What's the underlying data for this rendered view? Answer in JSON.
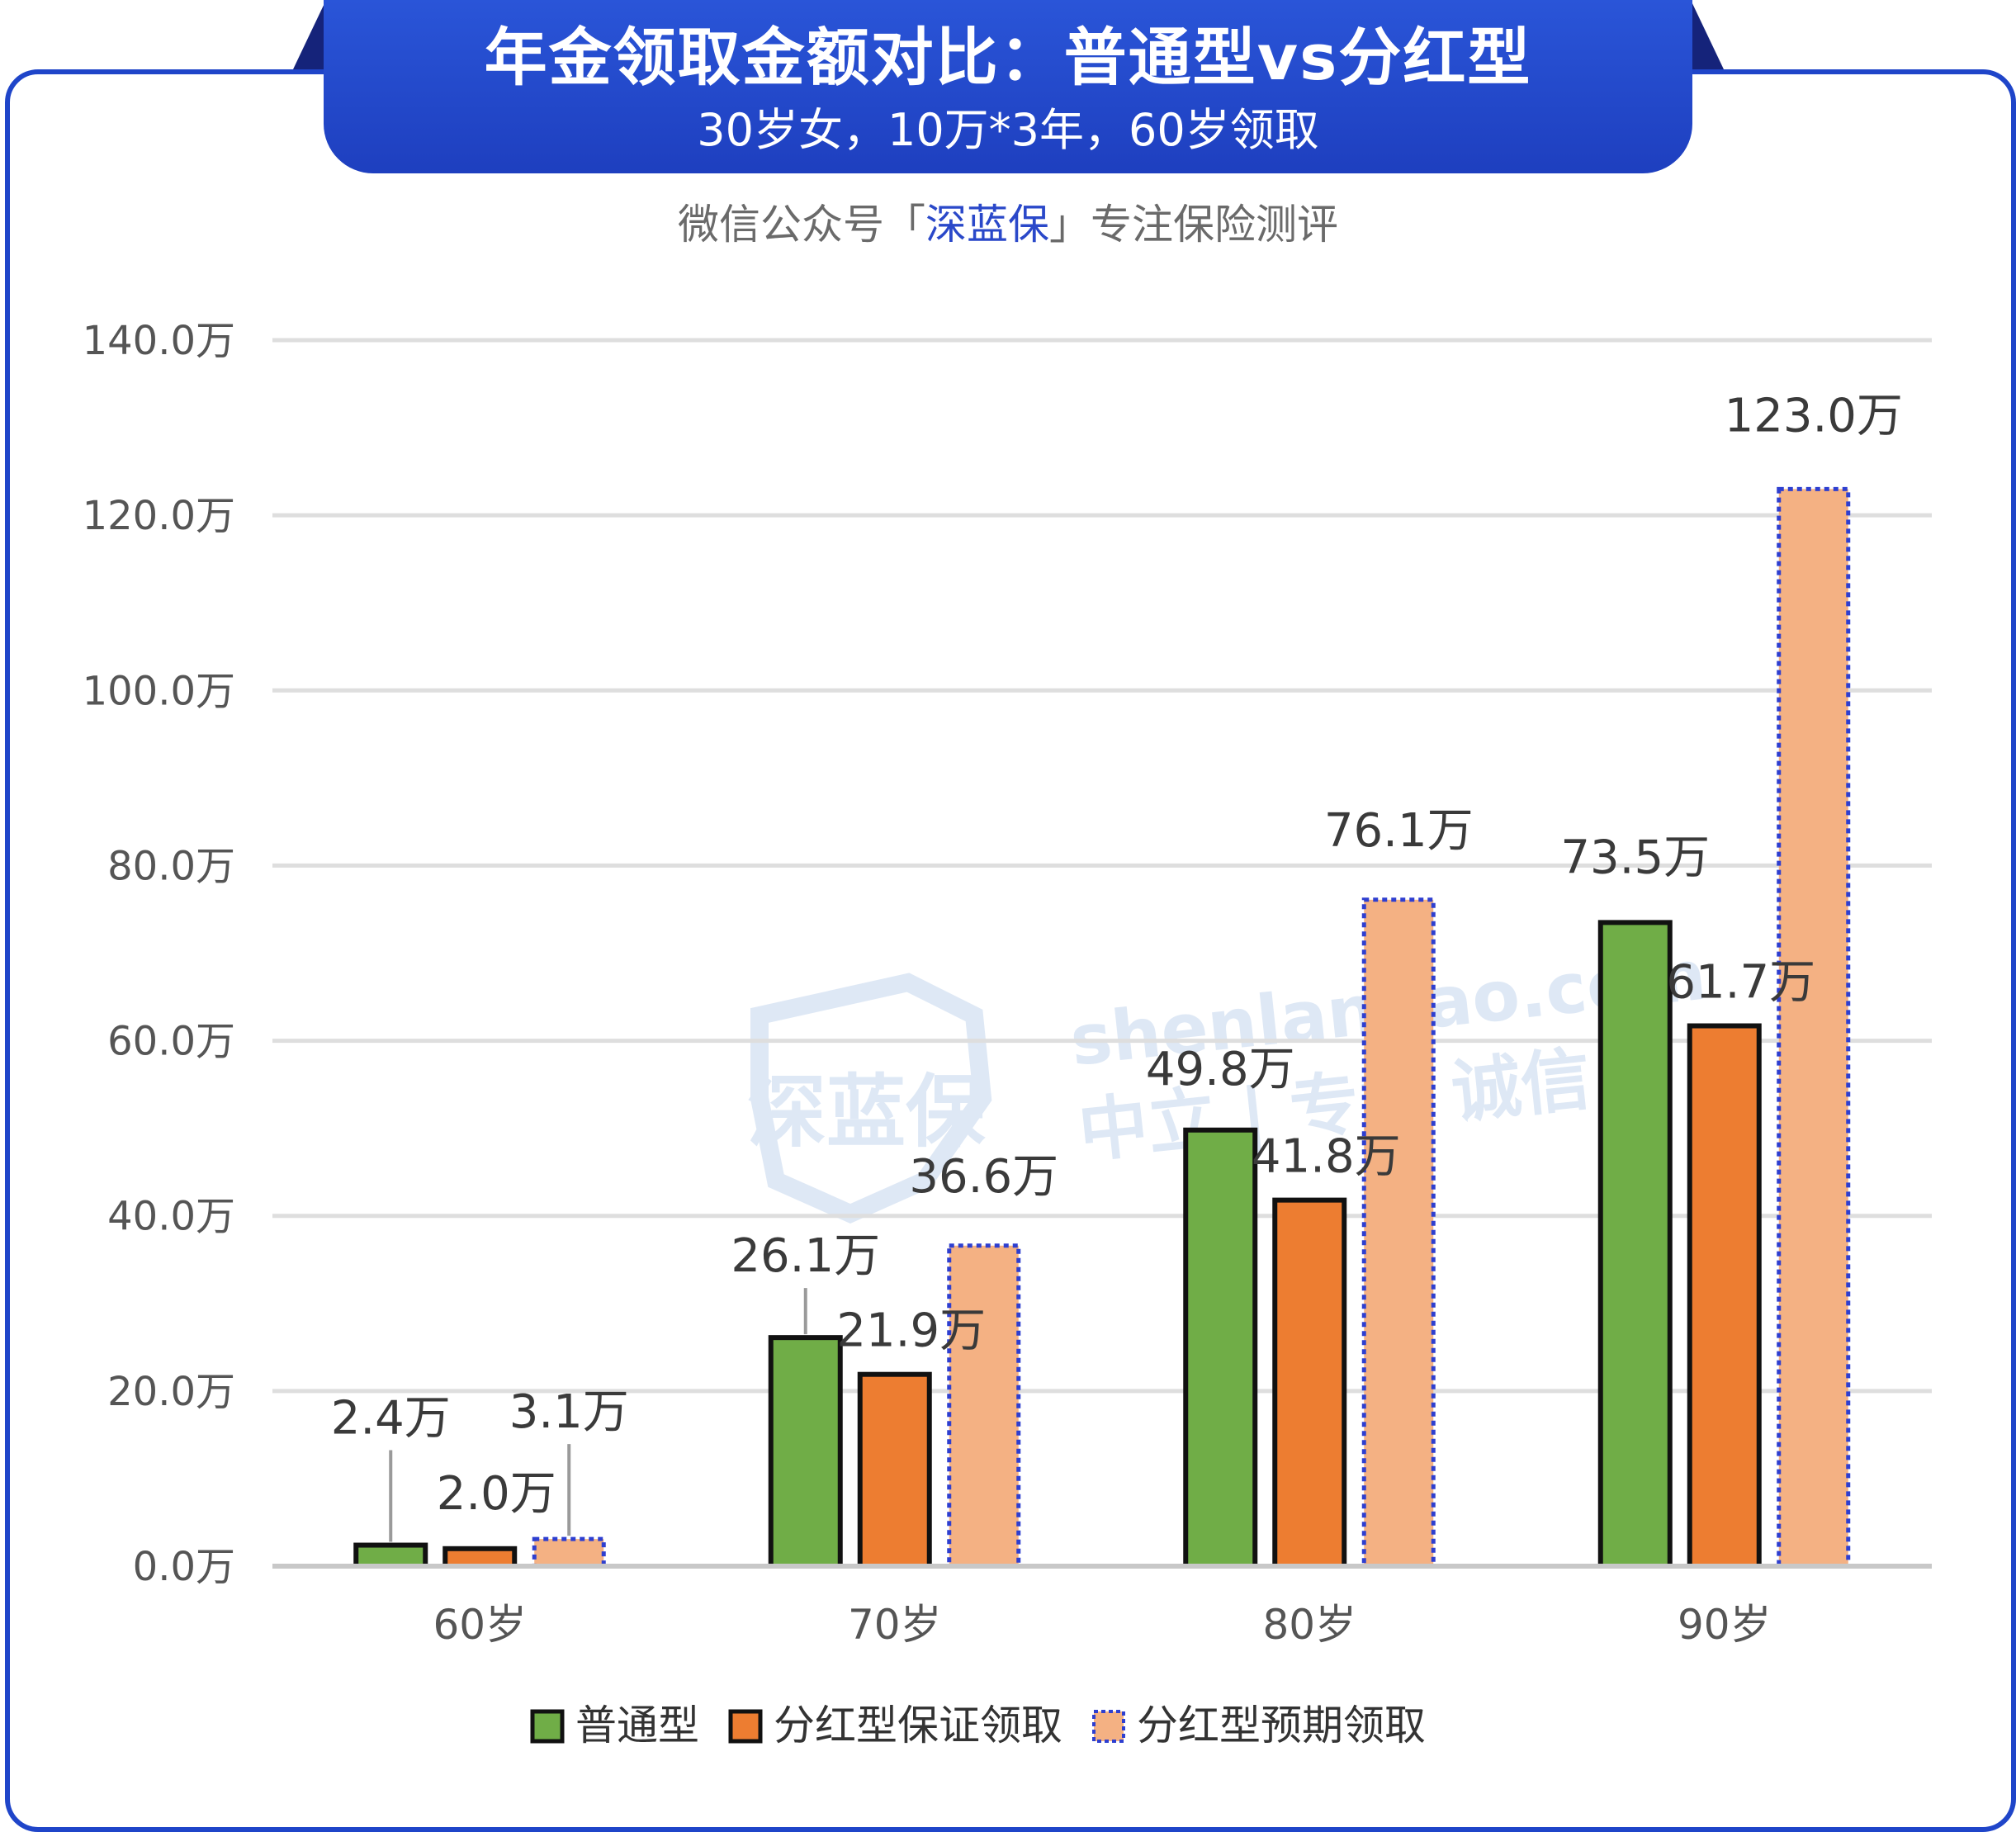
{
  "header": {
    "title": "年金领取金额对比：普通型vs分红型",
    "subtitle": "30岁女，10万*3年，60岁领取"
  },
  "source": {
    "prefix": "微信公众号「",
    "brand": "深蓝保",
    "suffix": "」专注保险测评"
  },
  "watermark": {
    "logo_text": "深蓝保",
    "url": "shenlanbao.com",
    "slogan": "中立 | 专业 诚信"
  },
  "colors": {
    "frame": "#1f45c9",
    "series_green": "#70ad47",
    "series_orange": "#ed7d31",
    "series_peach": "#f4b183",
    "dotted_border": "#2e3fd0"
  },
  "chart_data": {
    "type": "bar",
    "categories": [
      "60岁",
      "70岁",
      "80岁",
      "90岁"
    ],
    "series": [
      {
        "name": "普通型",
        "values": [
          2.4,
          26.1,
          49.8,
          73.5
        ],
        "labels": [
          "2.4万",
          "26.1万",
          "49.8万",
          "73.5万"
        ]
      },
      {
        "name": "分红型保证领取",
        "values": [
          2.0,
          21.9,
          41.8,
          61.7
        ],
        "labels": [
          "2.0万",
          "21.9万",
          "41.8万",
          "61.7万"
        ]
      },
      {
        "name": "分红型预期领取",
        "values": [
          3.1,
          36.6,
          76.1,
          123.0
        ],
        "labels": [
          "3.1万",
          "36.6万",
          "76.1万",
          "123.0万"
        ]
      }
    ],
    "ylim": [
      0,
      140
    ],
    "yticks": [
      0,
      20,
      40,
      60,
      80,
      100,
      120,
      140
    ],
    "ytick_labels": [
      "0.0万",
      "20.0万",
      "40.0万",
      "60.0万",
      "80.0万",
      "100.0万",
      "120.0万",
      "140.0万"
    ],
    "grid": true,
    "legend": "bottom"
  }
}
